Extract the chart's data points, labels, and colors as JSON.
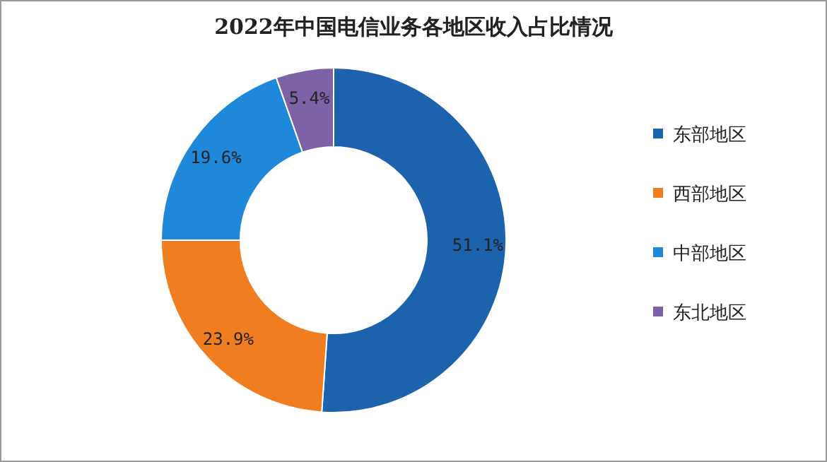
{
  "chart_data": {
    "type": "donut",
    "title": "2022年中国电信业务各地区收入占比情况",
    "categories": [
      "东部地区",
      "西部地区",
      "中部地区",
      "东北地区"
    ],
    "values": [
      51.1,
      23.9,
      19.6,
      5.4
    ],
    "colors": [
      "#1d62ad",
      "#f07e21",
      "#1f88d8",
      "#7d62a7"
    ],
    "value_labels": [
      "51.1%",
      "23.9%",
      "19.6%",
      "5.4%"
    ],
    "legend": "right"
  }
}
